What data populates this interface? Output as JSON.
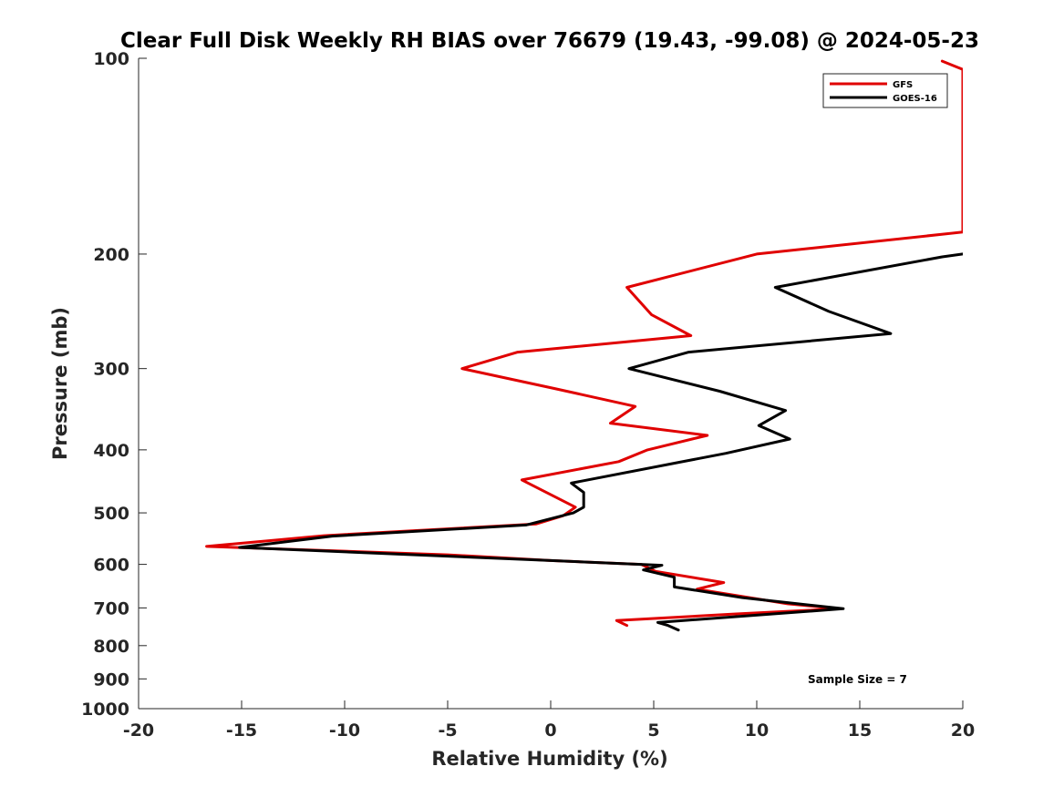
{
  "chart_data": {
    "type": "line",
    "title": "Clear Full Disk Weekly RH BIAS over 76679 (19.43, -99.08) @ 2024-05-23",
    "xlabel": "Relative Humidity (%)",
    "ylabel": "Pressure (mb)",
    "xlim": [
      -20,
      20
    ],
    "ylim": [
      100,
      1000
    ],
    "y_scale": "log",
    "y_reversed": true,
    "x_ticks": [
      -20,
      -15,
      -10,
      -5,
      0,
      5,
      10,
      15,
      20
    ],
    "y_ticks": [
      100,
      200,
      300,
      400,
      500,
      600,
      700,
      800,
      900,
      1000
    ],
    "grid": false,
    "legend_position": "top-right",
    "annotation": "Sample Size = 7",
    "series": [
      {
        "name": "GFS",
        "color": "#e00000",
        "points": [
          [
            19,
            101
          ],
          [
            20,
            104
          ],
          [
            20,
            185
          ],
          [
            10,
            200
          ],
          [
            3.7,
            225
          ],
          [
            4.9,
            248
          ],
          [
            6.8,
            267
          ],
          [
            -1.6,
            283
          ],
          [
            -4.3,
            300
          ],
          [
            0.2,
            322
          ],
          [
            4.1,
            343
          ],
          [
            2.9,
            364
          ],
          [
            7.6,
            380
          ],
          [
            4.7,
            400
          ],
          [
            3.3,
            417
          ],
          [
            -1.4,
            445
          ],
          [
            1.2,
            490
          ],
          [
            0.6,
            505
          ],
          [
            -0.7,
            520
          ],
          [
            -11,
            542
          ],
          [
            -16.7,
            563
          ],
          [
            -5,
            580
          ],
          [
            0,
            592
          ],
          [
            4.4,
            600
          ],
          [
            5.1,
            615
          ],
          [
            8.4,
            640
          ],
          [
            7.1,
            655
          ],
          [
            11.5,
            690
          ],
          [
            14,
            702
          ],
          [
            9,
            715
          ],
          [
            3.2,
            732
          ],
          [
            3.7,
            745
          ]
        ]
      },
      {
        "name": "GOES-16",
        "color": "#000000",
        "points": [
          [
            20,
            200
          ],
          [
            19,
            202
          ],
          [
            10.9,
            225
          ],
          [
            13.5,
            245
          ],
          [
            16.5,
            265
          ],
          [
            6.7,
            283
          ],
          [
            3.8,
            300
          ],
          [
            8.2,
            325
          ],
          [
            11.4,
            348
          ],
          [
            10.1,
            367
          ],
          [
            11.6,
            385
          ],
          [
            8.5,
            405
          ],
          [
            5.9,
            420
          ],
          [
            1,
            450
          ],
          [
            1.6,
            465
          ],
          [
            1.6,
            490
          ],
          [
            1.1,
            500
          ],
          [
            -1.2,
            522
          ],
          [
            -10.6,
            543
          ],
          [
            -15.1,
            565
          ],
          [
            0,
            592
          ],
          [
            5.4,
            602
          ],
          [
            4.5,
            612
          ],
          [
            6,
            628
          ],
          [
            6,
            650
          ],
          [
            9.3,
            675
          ],
          [
            14.2,
            702
          ],
          [
            9,
            722
          ],
          [
            5.2,
            737
          ],
          [
            5.7,
            745
          ],
          [
            6.2,
            757
          ]
        ]
      }
    ]
  }
}
